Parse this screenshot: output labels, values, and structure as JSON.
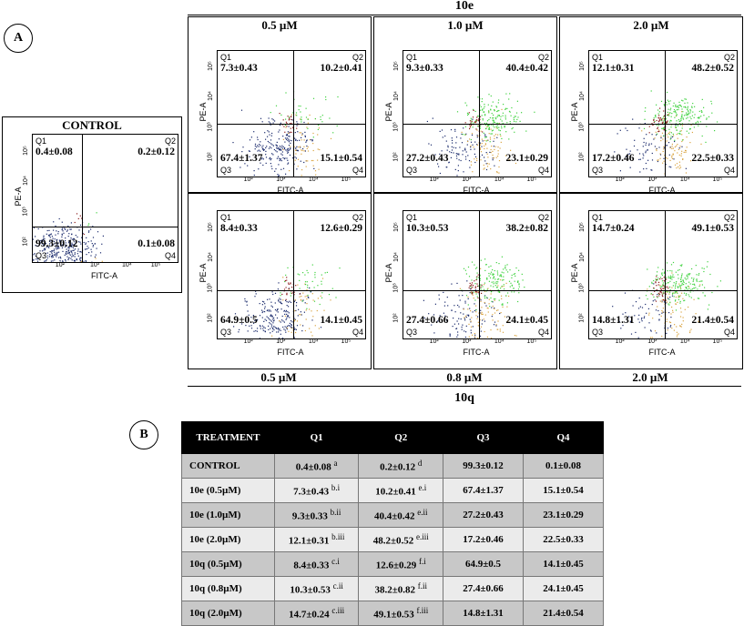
{
  "labels": {
    "A": "A",
    "B": "B"
  },
  "groups": {
    "top": {
      "title": "10e",
      "concs": [
        "0.5 µM",
        "1.0 µM",
        "2.0 µM"
      ]
    },
    "bottom": {
      "title": "10q",
      "concs": [
        "0.5 µM",
        "0.8 µM",
        "2.0 µM"
      ]
    }
  },
  "control_title": "CONTROL",
  "axes": {
    "x": "FITC-A",
    "y": "PE-A",
    "quads": [
      "Q1",
      "Q2",
      "Q3",
      "Q4"
    ]
  },
  "ticks": {
    "x": [
      "10²",
      "10³",
      "10⁴",
      "10⁵"
    ],
    "y": [
      "10²",
      "10³",
      "10⁴",
      "10⁵"
    ],
    "x_ctrl": [
      "10²",
      "10³",
      "10⁴",
      "10⁵"
    ],
    "y_ctrl": [
      "10²",
      "10³",
      "10⁴",
      "10⁵"
    ]
  },
  "panels": {
    "control": {
      "q1": "0.4±0.08",
      "q2": "0.2±0.12",
      "q3": "99.3±0.12",
      "q4": "0.1±0.08"
    },
    "e05": {
      "q1": "7.3±0.43",
      "q2": "10.2±0.41",
      "q3": "67.4±1.37",
      "q4": "15.1±0.54"
    },
    "e10": {
      "q1": "9.3±0.33",
      "q2": "40.4±0.42",
      "q3": "27.2±0.43",
      "q4": "23.1±0.29"
    },
    "e20": {
      "q1": "12.1±0.31",
      "q2": "48.2±0.52",
      "q3": "17.2±0.46",
      "q4": "22.5±0.33"
    },
    "q05": {
      "q1": "8.4±0.33",
      "q2": "12.6±0.29",
      "q3": "64.9±0.5",
      "q4": "14.1±0.45"
    },
    "q08": {
      "q1": "10.3±0.53",
      "q2": "38.2±0.82",
      "q3": "27.4±0.66",
      "q4": "24.1±0.45"
    },
    "q20": {
      "q1": "14.7±0.24",
      "q2": "49.1±0.53",
      "q3": "14.8±1.31",
      "q4": "21.4±0.54"
    }
  },
  "table": {
    "headers": [
      "TREATMENT",
      "Q1",
      "Q2",
      "Q3",
      "Q4"
    ],
    "rows": [
      {
        "t": "CONTROL",
        "q1": "0.4±0.08",
        "s1": "a",
        "q2": "0.2±0.12",
        "s2": "d",
        "q3": "99.3±0.12",
        "q4": "0.1±0.08"
      },
      {
        "t": "10e (0.5µM)",
        "q1": "7.3±0.43",
        "s1": "b.i",
        "q2": "10.2±0.41",
        "s2": "e.i",
        "q3": "67.4±1.37",
        "q4": "15.1±0.54"
      },
      {
        "t": "10e (1.0µM)",
        "q1": "9.3±0.33",
        "s1": "b.ii",
        "q2": "40.4±0.42",
        "s2": "e.ii",
        "q3": "27.2±0.43",
        "q4": "23.1±0.29"
      },
      {
        "t": "10e (2.0µM)",
        "q1": "12.1±0.31",
        "s1": "b.iii",
        "q2": "48.2±0.52",
        "s2": "e.iii",
        "q3": "17.2±0.46",
        "q4": "22.5±0.33"
      },
      {
        "t": "10q (0.5µM)",
        "q1": "8.4±0.33",
        "s1": "c.i",
        "q2": "12.6±0.29",
        "s2": "f.i",
        "q3": "64.9±0.5",
        "q4": "14.1±0.45"
      },
      {
        "t": "10q (0.8µM)",
        "q1": "10.3±0.53",
        "s1": "c.ii",
        "q2": "38.2±0.82",
        "s2": "f.ii",
        "q3": "27.4±0.66",
        "q4": "24.1±0.45"
      },
      {
        "t": "10q (2.0µM)",
        "q1": "14.7±0.24",
        "s1": "c.iii",
        "q2": "49.1±0.53",
        "s2": "f.iii",
        "q3": "14.8±1.31",
        "q4": "21.4±0.54"
      }
    ]
  },
  "colors": {
    "live": "#1a2a6c",
    "early": "#d9a441",
    "late": "#3fd23f",
    "necrotic": "#8b1a1a"
  }
}
